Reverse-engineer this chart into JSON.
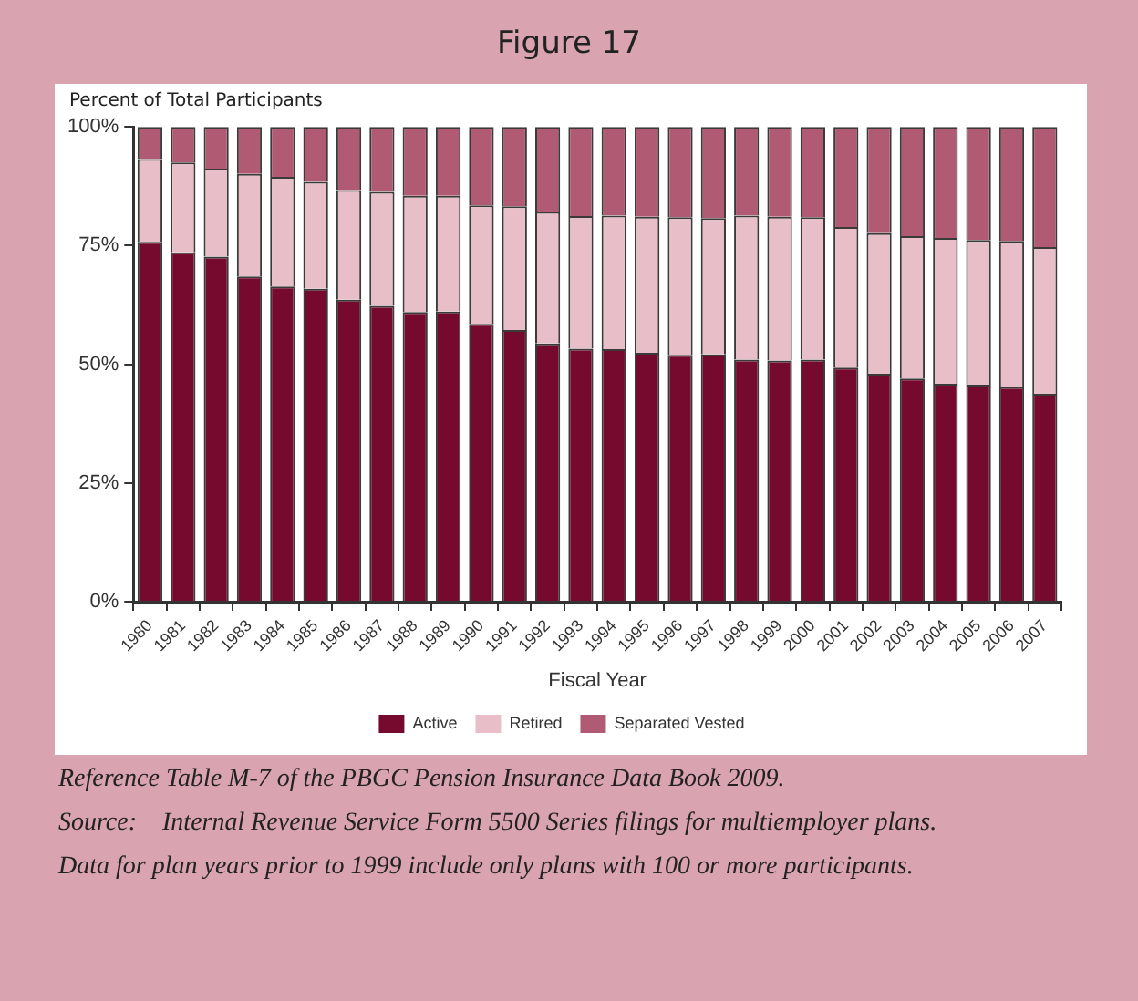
{
  "chart_data": {
    "type": "bar",
    "title": "Figure 17",
    "ylabel": "Percent of Total Participants",
    "xlabel": "Fiscal Year",
    "categories": [
      "1980",
      "1981",
      "1982",
      "1983",
      "1984",
      "1985",
      "1986",
      "1987",
      "1988",
      "1989",
      "1990",
      "1991",
      "1992",
      "1993",
      "1994",
      "1995",
      "1996",
      "1997",
      "1998",
      "1999",
      "2000",
      "2001",
      "2002",
      "2003",
      "2004",
      "2005",
      "2006",
      "2007"
    ],
    "stacked": true,
    "series": [
      {
        "name": "Active",
        "color": "#750a2e",
        "values": [
          75.8,
          73.6,
          72.7,
          68.5,
          66.4,
          65.9,
          63.6,
          62.3,
          61.0,
          61.1,
          58.5,
          57.2,
          54.4,
          53.3,
          53.2,
          52.4,
          52.0,
          52.1,
          51.0,
          50.8,
          51.0,
          49.3,
          48.0,
          47.0,
          45.9,
          45.7,
          45.2,
          43.8
        ]
      },
      {
        "name": "Retired",
        "color": "#e8bfc9",
        "values": [
          17.4,
          18.9,
          18.5,
          21.6,
          23.1,
          22.5,
          23.1,
          24.0,
          24.5,
          24.4,
          25.0,
          26.1,
          27.7,
          27.9,
          28.1,
          28.7,
          29.0,
          28.7,
          30.3,
          30.3,
          30.0,
          29.6,
          29.6,
          30.0,
          30.7,
          30.5,
          30.8,
          30.9
        ]
      },
      {
        "name": "Separated Vested",
        "color": "#b05a74",
        "values": [
          6.8,
          7.5,
          8.8,
          9.9,
          10.5,
          11.6,
          13.3,
          13.7,
          14.5,
          14.5,
          16.5,
          16.7,
          17.9,
          18.8,
          18.7,
          18.9,
          19.0,
          19.2,
          18.7,
          18.9,
          19.0,
          21.1,
          22.4,
          23.0,
          23.4,
          23.8,
          24.0,
          25.3
        ]
      }
    ],
    "ylim": [
      0,
      100
    ],
    "yticks": [
      {
        "value": 0,
        "label": "0%"
      },
      {
        "value": 25,
        "label": "25%"
      },
      {
        "value": 50,
        "label": "50%"
      },
      {
        "value": 75,
        "label": "75%"
      },
      {
        "value": 100,
        "label": "100%"
      }
    ],
    "grid": false,
    "legend": "bottom",
    "annotations": [
      "Reference Table M-7 of the PBGC Pension Insurance Data Book 2009.",
      "Source:    Internal Revenue Service Form 5500 Series filings for multiemployer plans.",
      "Data for plan years prior to 1999 include only plans with 100 or more participants."
    ]
  }
}
